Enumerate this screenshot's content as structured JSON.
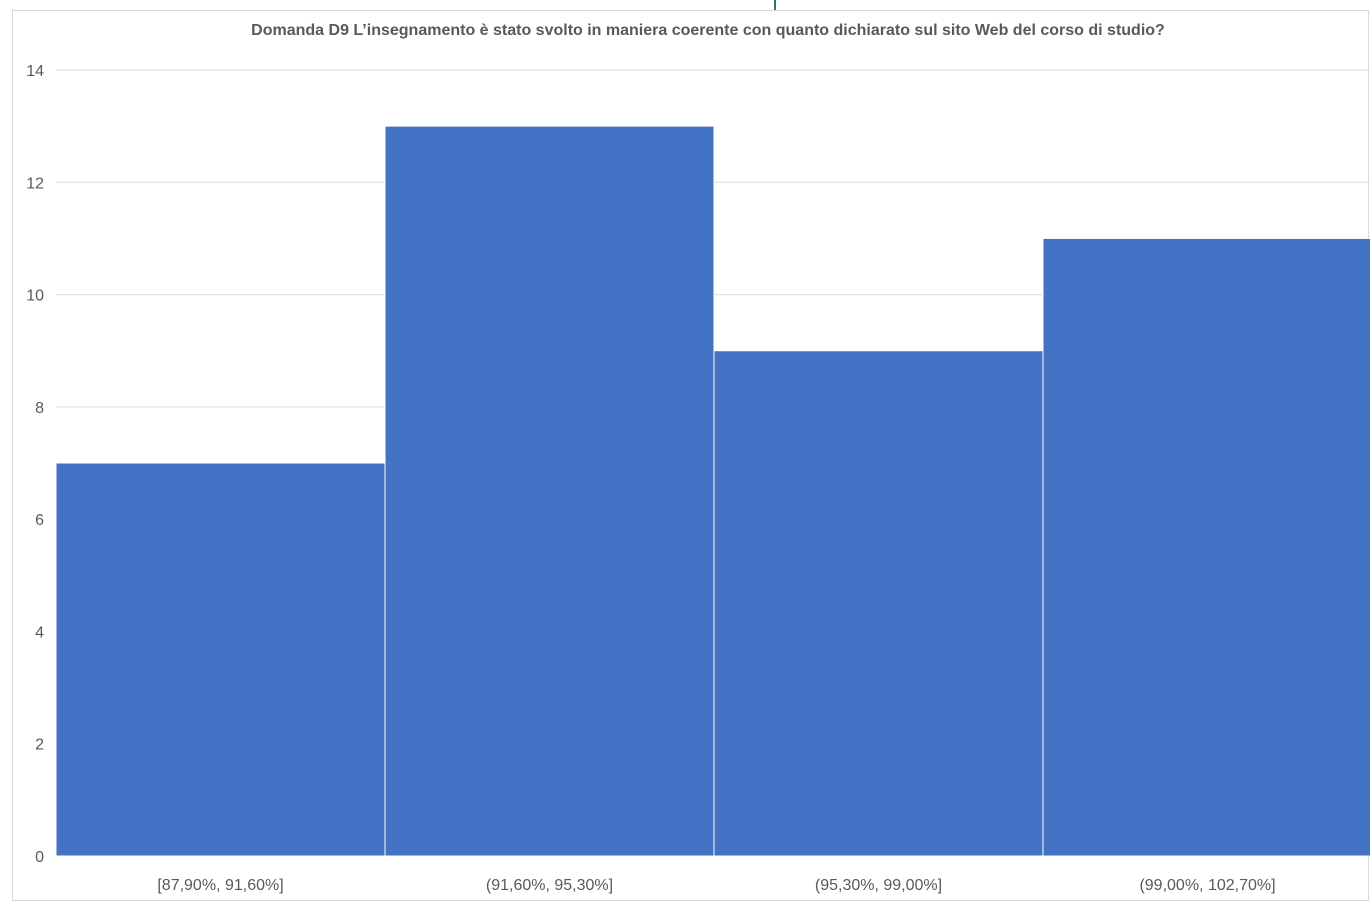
{
  "chart_data": {
    "type": "bar",
    "title": "Domanda D9 L’insegnamento è stato svolto in maniera coerente con quanto dichiarato sul sito Web del corso di studio?",
    "categories": [
      "[87,90%, 91,60%]",
      "(91,60%, 95,30%]",
      "(95,30%, 99,00%]",
      "(99,00%, 102,70%]"
    ],
    "values": [
      7,
      13,
      9,
      11
    ],
    "xlabel": "",
    "ylabel": "",
    "ylim": [
      0,
      14
    ],
    "yticks": [
      0,
      2,
      4,
      6,
      8,
      10,
      12,
      14
    ],
    "grid": true,
    "legend": "none",
    "colors": {
      "bar": "#4472c4",
      "bar_edge": "#ffffff",
      "grid": "#d9d9d9",
      "text": "#595959"
    }
  }
}
